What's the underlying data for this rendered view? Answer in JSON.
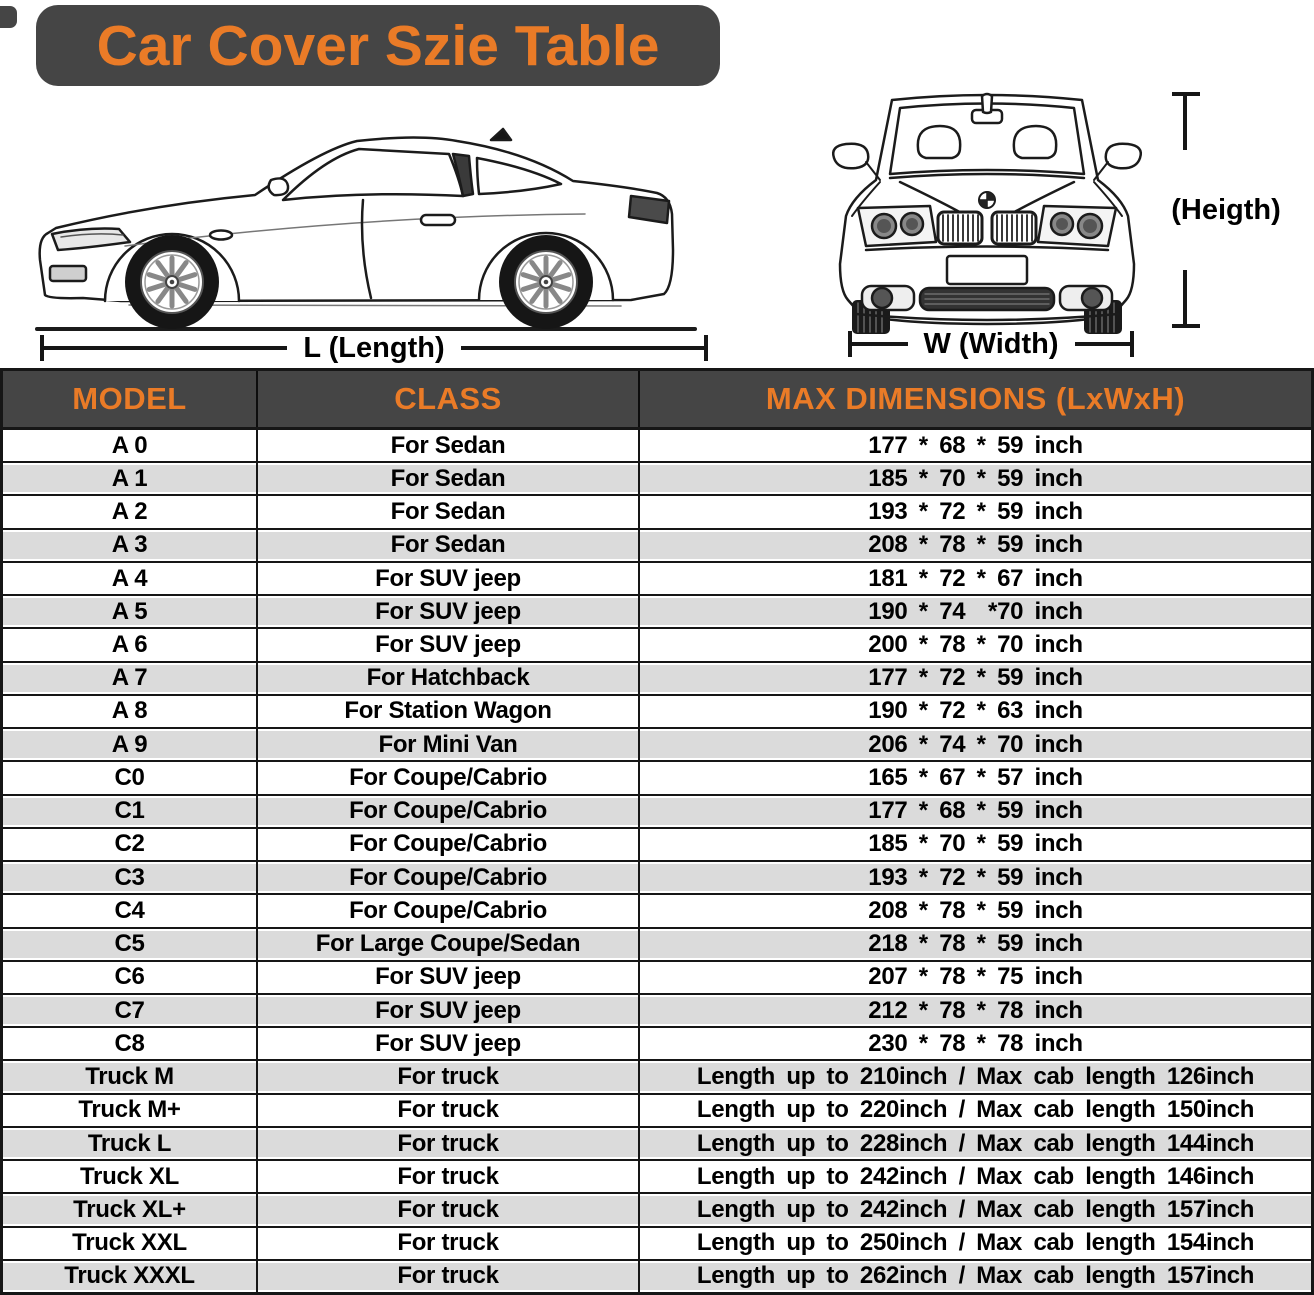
{
  "title": "Car Cover Szie Table",
  "diagram": {
    "side_view_illustration": "side-view-coupe-car",
    "front_view_illustration": "front-view-car",
    "length_label": "L (Length)",
    "width_label": "W (Width)",
    "height_label": "(Heigth)"
  },
  "table": {
    "headers": [
      "MODEL",
      "CLASS",
      "MAX DIMENSIONS (LxWxH)"
    ],
    "rows": [
      [
        "A 0",
        "For Sedan",
        "177 * 68 * 59 inch"
      ],
      [
        "A 1",
        "For Sedan",
        "185 * 70 * 59 inch"
      ],
      [
        "A 2",
        "For Sedan",
        "193 * 72 * 59 inch"
      ],
      [
        "A 3",
        "For Sedan",
        "208 * 78 * 59 inch"
      ],
      [
        "A 4",
        "For SUV jeep",
        "181 * 72 * 67 inch"
      ],
      [
        "A 5",
        "For SUV jeep",
        "190 * 74  *70 inch"
      ],
      [
        "A 6",
        "For SUV jeep",
        "200 * 78 * 70 inch"
      ],
      [
        "A 7",
        "For Hatchback",
        "177 * 72 * 59 inch"
      ],
      [
        "A 8",
        "For Station Wagon",
        "190 * 72 * 63 inch"
      ],
      [
        "A 9",
        "For Mini Van",
        "206 * 74 * 70 inch"
      ],
      [
        "C0",
        "For Coupe/Cabrio",
        "165 * 67 * 57 inch"
      ],
      [
        "C1",
        "For Coupe/Cabrio",
        "177 * 68 * 59 inch"
      ],
      [
        "C2",
        "For Coupe/Cabrio",
        "185 * 70 * 59 inch"
      ],
      [
        "C3",
        "For Coupe/Cabrio",
        "193 * 72 * 59 inch"
      ],
      [
        "C4",
        "For Coupe/Cabrio",
        "208 * 78 * 59 inch"
      ],
      [
        "C5",
        "For Large Coupe/Sedan",
        "218 * 78 * 59 inch"
      ],
      [
        "C6",
        "For SUV jeep",
        "207 * 78 * 75 inch"
      ],
      [
        "C7",
        "For SUV jeep",
        "212 * 78 * 78 inch"
      ],
      [
        "C8",
        "For SUV jeep",
        "230 * 78 * 78 inch"
      ],
      [
        "Truck M",
        "For truck",
        "Length up to 210inch / Max cab length 126inch"
      ],
      [
        "Truck M+",
        "For truck",
        "Length up to 220inch / Max cab length 150inch"
      ],
      [
        "Truck L",
        "For truck",
        "Length up to 228inch / Max cab length 144inch"
      ],
      [
        "Truck XL",
        "For truck",
        "Length up to 242inch / Max cab length 146inch"
      ],
      [
        "Truck XL+",
        "For truck",
        "Length up to 242inch / Max cab length 157inch"
      ],
      [
        "Truck XXL",
        "For truck",
        "Length up to 250inch / Max cab length 154inch"
      ],
      [
        "Truck XXXL",
        "For truck",
        "Length up to 262inch / Max cab length 157inch"
      ]
    ]
  },
  "colors": {
    "accent_orange": "#EA7B27",
    "banner_dark": "#454545",
    "row_shade_gray": "#DBDBDB",
    "line_black": "#161616"
  }
}
